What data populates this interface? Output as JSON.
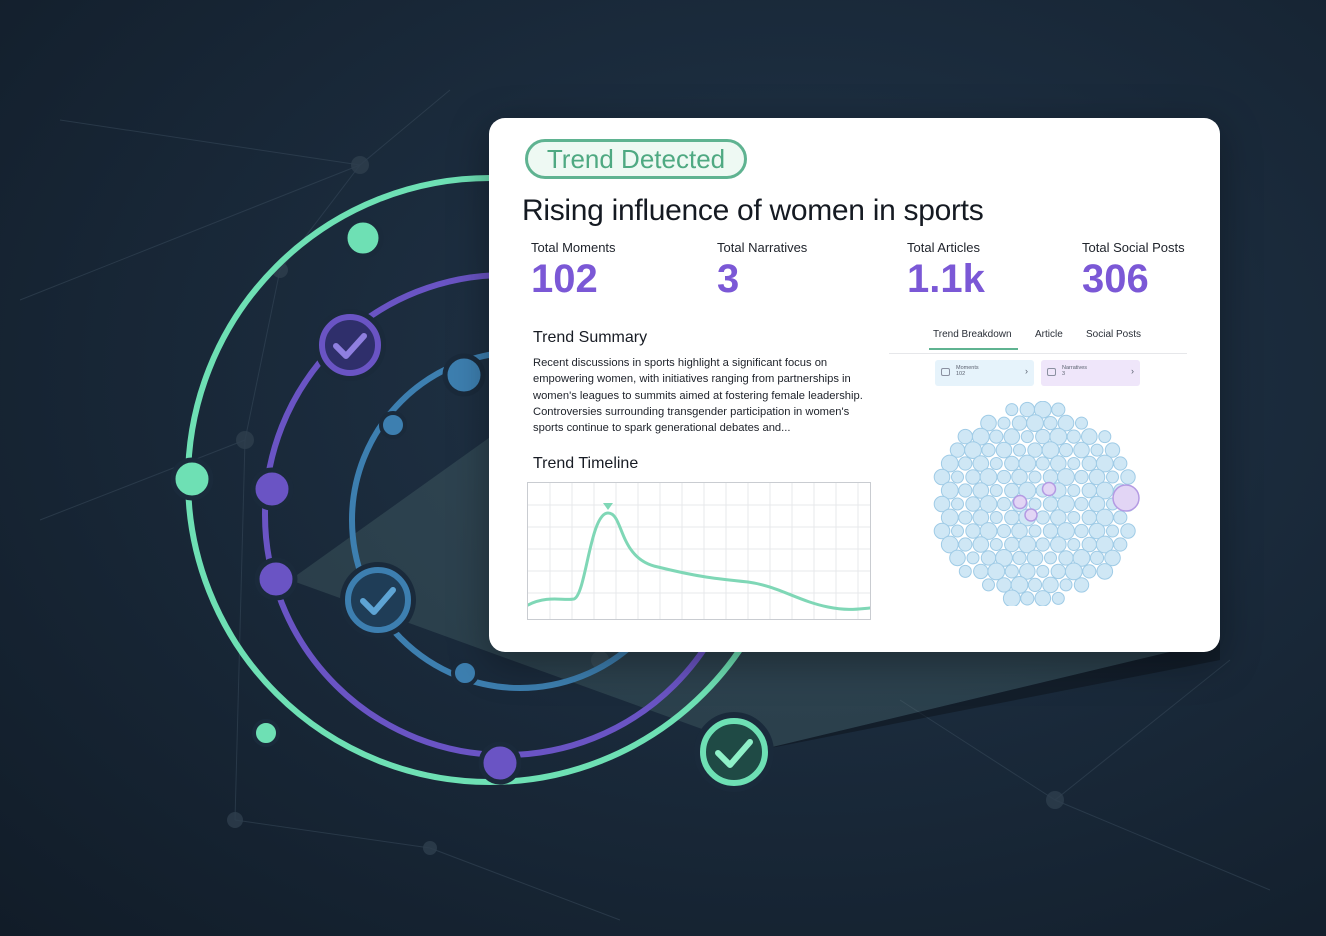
{
  "badge": "Trend Detected",
  "title": "Rising influence of women in sports",
  "stats": [
    {
      "label": "Total Moments",
      "value": "102"
    },
    {
      "label": "Total Narratives",
      "value": "3"
    },
    {
      "label": "Total Articles",
      "value": "1.1k"
    },
    {
      "label": "Total Social Posts",
      "value": "306"
    }
  ],
  "summary": {
    "title": "Trend Summary",
    "text": "Recent discussions in sports highlight a significant focus on empowering women, with initiatives ranging from partnerships in women's leagues to summits aimed at fostering female leadership. Controversies surrounding transgender participation in women's sports continue to spark generational debates and..."
  },
  "timeline": {
    "title": "Trend Timeline"
  },
  "tabs": [
    "Trend Breakdown",
    "Article",
    "Social Posts"
  ],
  "chips": [
    {
      "label": "Moments",
      "value": "102",
      "icon": "moments-icon"
    },
    {
      "label": "Narratives",
      "value": "3",
      "icon": "narratives-icon"
    }
  ],
  "colors": {
    "accent_green": "#6ee0b4",
    "accent_purple": "#7b58d6",
    "accent_blue": "#3d7fb0",
    "bubble_fill": "#cfe7f5",
    "bubble_stroke": "#9fcbe6",
    "narrative_fill": "#e2d5f5",
    "narrative_stroke": "#b49ae3"
  }
}
